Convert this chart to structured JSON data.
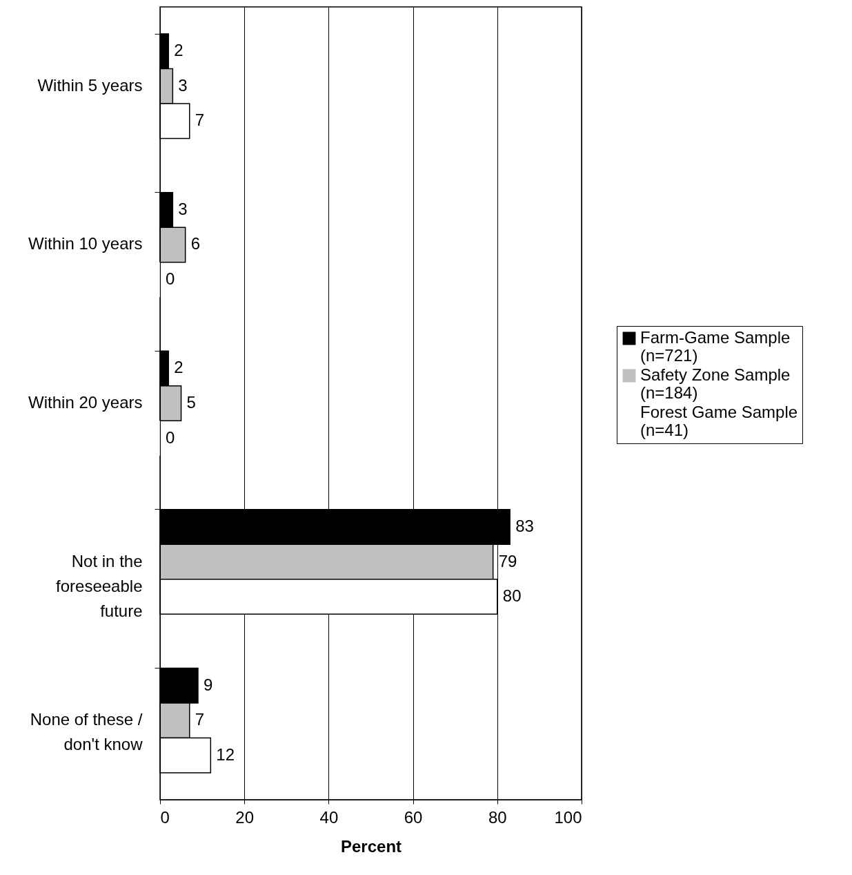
{
  "chart_data": {
    "type": "bar",
    "orientation": "horizontal",
    "xlabel": "Percent",
    "categories": [
      "Within 5 years",
      "Within 10 years",
      "Within 20 years",
      "Not in the foreseeable future",
      "None of these / don't know"
    ],
    "series": [
      {
        "name": "Farm-Game Sample (n=721)",
        "color": "#000000",
        "values": [
          2,
          3,
          2,
          83,
          9
        ]
      },
      {
        "name": "Safety Zone Sample (n=184)",
        "color": "#c0c0c0",
        "values": [
          3,
          6,
          5,
          79,
          7
        ]
      },
      {
        "name": "Forest Game Sample (n=41)",
        "color": "#ffffff",
        "values": [
          7,
          0,
          0,
          80,
          12
        ]
      }
    ],
    "xlim": [
      0,
      100
    ],
    "xticks": [
      0,
      20,
      40,
      60,
      80,
      100
    ],
    "grid": "x",
    "legend": "right",
    "data_labels": true
  }
}
